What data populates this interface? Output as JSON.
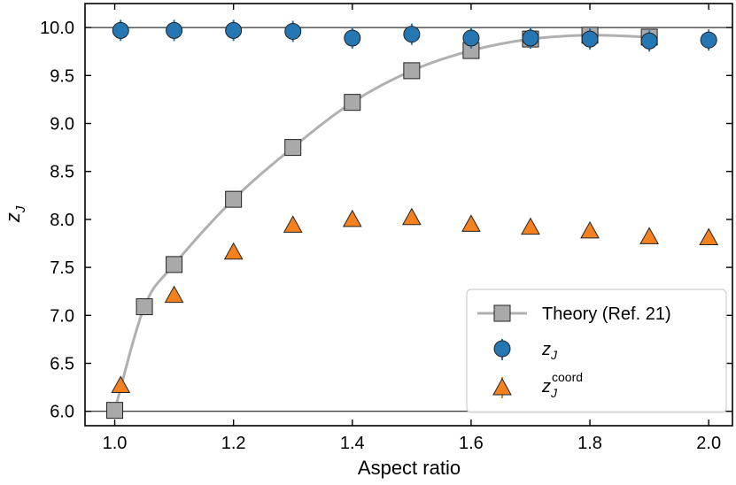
{
  "chart_data": {
    "type": "scatter",
    "xlabel": "Aspect ratio",
    "ylabel_main": "z",
    "ylabel_sub": "J",
    "xlim": [
      0.95,
      2.04
    ],
    "ylim": [
      5.85,
      10.25
    ],
    "xticks": [
      1.0,
      1.2,
      1.4,
      1.6,
      1.8,
      2.0
    ],
    "xtick_labels": [
      "1.0",
      "1.2",
      "1.4",
      "1.6",
      "1.8",
      "2.0"
    ],
    "yticks": [
      6.0,
      6.5,
      7.0,
      7.5,
      8.0,
      8.5,
      9.0,
      9.5,
      10.0
    ],
    "ytick_labels": [
      "6.0",
      "6.5",
      "7.0",
      "7.5",
      "8.0",
      "8.5",
      "9.0",
      "9.5",
      "10.0"
    ],
    "reference_lines": [
      6.0,
      10.0
    ],
    "grid": false,
    "legend_position": "lower-right",
    "series": [
      {
        "name": "Theory (Ref. 21)",
        "marker": "square",
        "line": true,
        "color": "#a9a9a9",
        "line_color": "#b0b0b0",
        "x": [
          1.0,
          1.05,
          1.1,
          1.2,
          1.3,
          1.4,
          1.5,
          1.6,
          1.7,
          1.8,
          1.9
        ],
        "y": [
          6.01,
          7.09,
          7.53,
          8.21,
          8.75,
          9.22,
          9.55,
          9.76,
          9.88,
          9.92,
          9.9
        ]
      },
      {
        "name_main": "z",
        "name_sub": "J",
        "marker": "circle",
        "line": false,
        "color": "#2577b4",
        "x": [
          1.01,
          1.1,
          1.2,
          1.3,
          1.4,
          1.5,
          1.6,
          1.7,
          1.8,
          1.9,
          2.0
        ],
        "y": [
          9.97,
          9.97,
          9.97,
          9.96,
          9.89,
          9.93,
          9.89,
          9.89,
          9.88,
          9.86,
          9.87
        ]
      },
      {
        "name_main": "z",
        "name_sub": "J",
        "name_sup": "coord",
        "marker": "triangle",
        "line": false,
        "color": "#f5801e",
        "x": [
          1.01,
          1.1,
          1.2,
          1.3,
          1.4,
          1.5,
          1.6,
          1.7,
          1.8,
          1.9,
          2.0
        ],
        "y": [
          6.27,
          7.21,
          7.66,
          7.94,
          8.0,
          8.02,
          7.95,
          7.92,
          7.88,
          7.82,
          7.81
        ]
      }
    ]
  }
}
